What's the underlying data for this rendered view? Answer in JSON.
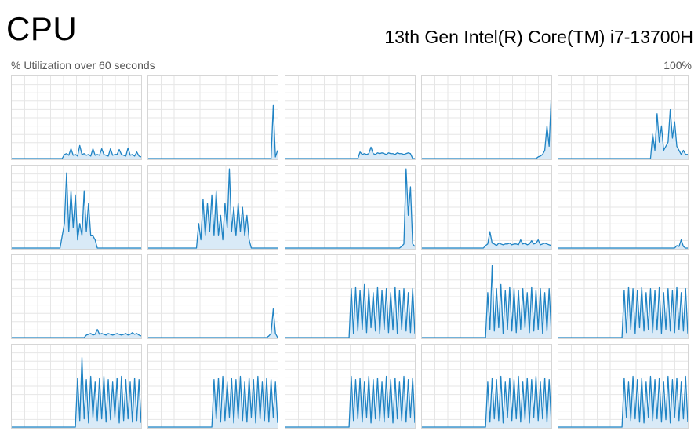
{
  "header": {
    "title": "CPU",
    "cpu_name": "13th Gen Intel(R) Core(TM) i7-13700H",
    "util_label": "% Utilization over 60 seconds",
    "max_label": "100%"
  },
  "colors": {
    "line": "#1f83c4",
    "fill": "#d9eaf7",
    "grid": "#e6e6e6",
    "border": "#d6d6d6"
  },
  "chart_data": {
    "type": "line",
    "grid": true,
    "ylim": [
      0,
      100
    ],
    "xlim": [
      0,
      60
    ],
    "processors": [
      {
        "name": "",
        "values": [
          0,
          0,
          0,
          0,
          0,
          0,
          0,
          0,
          0,
          0,
          0,
          0,
          0,
          0,
          0,
          0,
          0,
          0,
          0,
          0,
          0,
          0,
          0,
          0,
          5,
          6,
          4,
          12,
          4,
          5,
          3,
          16,
          5,
          6,
          4,
          5,
          3,
          12,
          4,
          5,
          4,
          12,
          5,
          4,
          3,
          12,
          4,
          5,
          5,
          11,
          5,
          4,
          3,
          13,
          4,
          5,
          3,
          8,
          3,
          2
        ]
      },
      {
        "name": "",
        "values": [
          0,
          0,
          0,
          0,
          0,
          0,
          0,
          0,
          0,
          0,
          0,
          0,
          0,
          0,
          0,
          0,
          0,
          0,
          0,
          0,
          0,
          0,
          0,
          0,
          0,
          0,
          0,
          0,
          0,
          0,
          0,
          0,
          0,
          0,
          0,
          0,
          0,
          0,
          0,
          0,
          0,
          0,
          0,
          0,
          0,
          0,
          0,
          0,
          0,
          0,
          0,
          0,
          0,
          0,
          0,
          0,
          0,
          65,
          2,
          10
        ]
      },
      {
        "name": "",
        "values": [
          0,
          0,
          0,
          0,
          0,
          0,
          0,
          0,
          0,
          0,
          0,
          0,
          0,
          0,
          0,
          0,
          0,
          0,
          0,
          0,
          0,
          0,
          0,
          0,
          0,
          0,
          0,
          0,
          0,
          0,
          0,
          0,
          0,
          0,
          8,
          5,
          6,
          5,
          6,
          14,
          6,
          5,
          7,
          6,
          7,
          6,
          5,
          7,
          6,
          6,
          5,
          7,
          6,
          6,
          5,
          6,
          7,
          6,
          0,
          0
        ]
      },
      {
        "name": "",
        "values": [
          0,
          0,
          0,
          0,
          0,
          0,
          0,
          0,
          0,
          0,
          0,
          0,
          0,
          0,
          0,
          0,
          0,
          0,
          0,
          0,
          0,
          0,
          0,
          0,
          0,
          0,
          0,
          0,
          0,
          0,
          0,
          0,
          0,
          0,
          0,
          0,
          0,
          0,
          0,
          0,
          0,
          0,
          0,
          0,
          0,
          0,
          0,
          0,
          0,
          0,
          0,
          0,
          0,
          2,
          3,
          5,
          10,
          40,
          15,
          80
        ]
      },
      {
        "name": "",
        "values": [
          0,
          0,
          0,
          0,
          0,
          0,
          0,
          0,
          0,
          0,
          0,
          0,
          0,
          0,
          0,
          0,
          0,
          0,
          0,
          0,
          0,
          0,
          0,
          0,
          0,
          0,
          0,
          0,
          0,
          0,
          0,
          0,
          0,
          0,
          0,
          0,
          0,
          0,
          0,
          0,
          0,
          0,
          0,
          30,
          10,
          55,
          20,
          40,
          10,
          15,
          20,
          60,
          25,
          45,
          15,
          10,
          5,
          10,
          5,
          5
        ]
      },
      {
        "name": "",
        "values": [
          0,
          0,
          0,
          0,
          0,
          0,
          0,
          0,
          0,
          0,
          0,
          0,
          0,
          0,
          0,
          0,
          0,
          0,
          0,
          0,
          0,
          0,
          0,
          15,
          30,
          92,
          20,
          70,
          25,
          65,
          10,
          30,
          15,
          70,
          20,
          55,
          15,
          15,
          10,
          0,
          0,
          0,
          0,
          0,
          0,
          0,
          0,
          0,
          0,
          0,
          0,
          0,
          0,
          0,
          0,
          0,
          0,
          0,
          0,
          0
        ]
      },
      {
        "name": "",
        "values": [
          0,
          0,
          0,
          0,
          0,
          0,
          0,
          0,
          0,
          0,
          0,
          0,
          0,
          0,
          0,
          0,
          0,
          0,
          0,
          0,
          0,
          0,
          0,
          30,
          10,
          60,
          15,
          55,
          20,
          65,
          15,
          70,
          15,
          40,
          10,
          55,
          25,
          97,
          20,
          50,
          15,
          55,
          20,
          50,
          15,
          40,
          10,
          0,
          0,
          0,
          0,
          0,
          0,
          0,
          0,
          0,
          0,
          0,
          0,
          0
        ]
      },
      {
        "name": "",
        "values": [
          0,
          0,
          0,
          0,
          0,
          0,
          0,
          0,
          0,
          0,
          0,
          0,
          0,
          0,
          0,
          0,
          0,
          0,
          0,
          0,
          0,
          0,
          0,
          0,
          0,
          0,
          0,
          0,
          0,
          0,
          0,
          0,
          0,
          0,
          0,
          0,
          0,
          0,
          0,
          0,
          0,
          0,
          0,
          0,
          0,
          0,
          0,
          0,
          0,
          0,
          0,
          0,
          0,
          2,
          5,
          97,
          40,
          75,
          5,
          2
        ]
      },
      {
        "name": "",
        "values": [
          0,
          0,
          0,
          0,
          0,
          0,
          0,
          0,
          0,
          0,
          0,
          0,
          0,
          0,
          0,
          0,
          0,
          0,
          0,
          0,
          0,
          0,
          0,
          0,
          0,
          0,
          0,
          0,
          0,
          3,
          5,
          20,
          6,
          5,
          3,
          6,
          5,
          4,
          5,
          5,
          6,
          4,
          5,
          5,
          4,
          10,
          5,
          6,
          4,
          5,
          9,
          5,
          6,
          10,
          4,
          5,
          6,
          5,
          4,
          3
        ]
      },
      {
        "name": "",
        "values": [
          0,
          0,
          0,
          0,
          0,
          0,
          0,
          0,
          0,
          0,
          0,
          0,
          0,
          0,
          0,
          0,
          0,
          0,
          0,
          0,
          0,
          0,
          0,
          0,
          0,
          0,
          0,
          0,
          0,
          0,
          0,
          0,
          0,
          0,
          0,
          0,
          0,
          0,
          0,
          0,
          0,
          0,
          0,
          0,
          0,
          0,
          0,
          0,
          0,
          0,
          0,
          0,
          0,
          0,
          3,
          2,
          10,
          2,
          0,
          0
        ]
      },
      {
        "name": "",
        "values": [
          0,
          0,
          0,
          0,
          0,
          0,
          0,
          0,
          0,
          0,
          0,
          0,
          0,
          0,
          0,
          0,
          0,
          0,
          0,
          0,
          0,
          0,
          0,
          0,
          0,
          0,
          0,
          0,
          0,
          0,
          0,
          0,
          0,
          0,
          3,
          4,
          5,
          3,
          4,
          10,
          4,
          5,
          4,
          3,
          5,
          4,
          3,
          4,
          5,
          4,
          3,
          4,
          5,
          3,
          4,
          6,
          4,
          5,
          3,
          2
        ]
      },
      {
        "name": "",
        "values": [
          0,
          0,
          0,
          0,
          0,
          0,
          0,
          0,
          0,
          0,
          0,
          0,
          0,
          0,
          0,
          0,
          0,
          0,
          0,
          0,
          0,
          0,
          0,
          0,
          0,
          0,
          0,
          0,
          0,
          0,
          0,
          0,
          0,
          0,
          0,
          0,
          0,
          0,
          0,
          0,
          0,
          0,
          0,
          0,
          0,
          0,
          0,
          0,
          0,
          0,
          0,
          0,
          0,
          0,
          0,
          2,
          5,
          35,
          5,
          0
        ]
      },
      {
        "name": "",
        "values": [
          0,
          0,
          0,
          0,
          0,
          0,
          0,
          0,
          0,
          0,
          0,
          0,
          0,
          0,
          0,
          0,
          0,
          0,
          0,
          0,
          0,
          0,
          0,
          0,
          0,
          0,
          0,
          0,
          0,
          0,
          60,
          5,
          62,
          8,
          58,
          10,
          65,
          6,
          60,
          12,
          55,
          8,
          62,
          5,
          58,
          10,
          60,
          6,
          55,
          9,
          62,
          5,
          58,
          10,
          60,
          8,
          55,
          6,
          60,
          5
        ]
      },
      {
        "name": "",
        "values": [
          0,
          0,
          0,
          0,
          0,
          0,
          0,
          0,
          0,
          0,
          0,
          0,
          0,
          0,
          0,
          0,
          0,
          0,
          0,
          0,
          0,
          0,
          0,
          0,
          0,
          0,
          0,
          0,
          0,
          0,
          55,
          10,
          88,
          8,
          60,
          12,
          65,
          5,
          58,
          10,
          62,
          8,
          60,
          6,
          58,
          10,
          60,
          12,
          55,
          6,
          62,
          8,
          58,
          10,
          60,
          5,
          55,
          8,
          60,
          6
        ]
      },
      {
        "name": "",
        "values": [
          0,
          0,
          0,
          0,
          0,
          0,
          0,
          0,
          0,
          0,
          0,
          0,
          0,
          0,
          0,
          0,
          0,
          0,
          0,
          0,
          0,
          0,
          0,
          0,
          0,
          0,
          0,
          0,
          0,
          0,
          58,
          6,
          62,
          10,
          60,
          5,
          58,
          12,
          62,
          8,
          55,
          10,
          60,
          6,
          58,
          9,
          62,
          5,
          55,
          10,
          60,
          8,
          58,
          6,
          62,
          10,
          55,
          8,
          60,
          5
        ]
      },
      {
        "name": "",
        "values": [
          0,
          0,
          0,
          0,
          0,
          0,
          0,
          0,
          0,
          0,
          0,
          0,
          0,
          0,
          0,
          0,
          0,
          0,
          0,
          0,
          0,
          0,
          0,
          0,
          0,
          0,
          0,
          0,
          0,
          0,
          60,
          8,
          85,
          10,
          58,
          5,
          62,
          12,
          55,
          8,
          60,
          10,
          62,
          6,
          58,
          9,
          55,
          12,
          60,
          5,
          62,
          8,
          58,
          10,
          55,
          6,
          60,
          8,
          58,
          5
        ]
      },
      {
        "name": "",
        "values": [
          0,
          0,
          0,
          0,
          0,
          0,
          0,
          0,
          0,
          0,
          0,
          0,
          0,
          0,
          0,
          0,
          0,
          0,
          0,
          0,
          0,
          0,
          0,
          0,
          0,
          0,
          0,
          0,
          0,
          0,
          58,
          10,
          60,
          6,
          62,
          8,
          55,
          12,
          60,
          5,
          58,
          10,
          62,
          8,
          55,
          6,
          60,
          12,
          58,
          5,
          62,
          10,
          55,
          8,
          60,
          6,
          58,
          12,
          55,
          5
        ]
      },
      {
        "name": "",
        "values": [
          0,
          0,
          0,
          0,
          0,
          0,
          0,
          0,
          0,
          0,
          0,
          0,
          0,
          0,
          0,
          0,
          0,
          0,
          0,
          0,
          0,
          0,
          0,
          0,
          0,
          0,
          0,
          0,
          0,
          0,
          62,
          8,
          58,
          10,
          60,
          6,
          55,
          12,
          62,
          5,
          58,
          10,
          60,
          8,
          55,
          6,
          62,
          12,
          58,
          5,
          60,
          10,
          55,
          8,
          62,
          6,
          58,
          12,
          60,
          5
        ]
      },
      {
        "name": "",
        "values": [
          0,
          0,
          0,
          0,
          0,
          0,
          0,
          0,
          0,
          0,
          0,
          0,
          0,
          0,
          0,
          0,
          0,
          0,
          0,
          0,
          0,
          0,
          0,
          0,
          0,
          0,
          0,
          0,
          0,
          0,
          55,
          6,
          60,
          10,
          58,
          8,
          62,
          5,
          55,
          12,
          60,
          8,
          58,
          10,
          62,
          6,
          55,
          9,
          60,
          5,
          58,
          12,
          62,
          8,
          55,
          10,
          60,
          6,
          58,
          5
        ]
      },
      {
        "name": "",
        "values": [
          0,
          0,
          0,
          0,
          0,
          0,
          0,
          0,
          0,
          0,
          0,
          0,
          0,
          0,
          0,
          0,
          0,
          0,
          0,
          0,
          0,
          0,
          0,
          0,
          0,
          0,
          0,
          0,
          0,
          0,
          60,
          12,
          55,
          8,
          62,
          10,
          58,
          6,
          60,
          5,
          55,
          12,
          62,
          8,
          58,
          10,
          60,
          6,
          55,
          9,
          62,
          5,
          58,
          12,
          60,
          8,
          55,
          10,
          62,
          6
        ]
      }
    ]
  }
}
